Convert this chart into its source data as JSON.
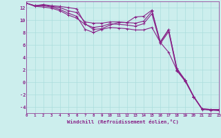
{
  "xlabel": "Windchill (Refroidissement éolien,°C)",
  "bg_color": "#cceeed",
  "line_color": "#882288",
  "grid_color": "#aadddd",
  "ylim": [
    -5,
    13
  ],
  "xlim": [
    0,
    23
  ],
  "yticks": [
    -4,
    -2,
    0,
    2,
    4,
    6,
    8,
    10,
    12
  ],
  "xticks": [
    0,
    1,
    2,
    3,
    4,
    5,
    6,
    7,
    8,
    9,
    10,
    11,
    12,
    13,
    14,
    15,
    16,
    17,
    18,
    19,
    20,
    21,
    22,
    23
  ],
  "series": [
    [
      12.7,
      12.3,
      12.5,
      12.3,
      12.2,
      12.0,
      11.8,
      9.4,
      8.5,
      8.6,
      9.2,
      9.6,
      9.6,
      10.5,
      10.6,
      11.6,
      6.4,
      8.4,
      2.2,
      0.3,
      -2.3,
      -4.3,
      -4.4,
      -4.4
    ],
    [
      12.7,
      12.3,
      12.4,
      12.2,
      12.0,
      11.5,
      11.2,
      9.7,
      9.5,
      9.5,
      9.7,
      9.7,
      9.6,
      9.5,
      9.8,
      11.4,
      6.5,
      8.5,
      2.0,
      0.2,
      -2.4,
      -4.3,
      -4.4,
      -4.5
    ],
    [
      12.7,
      12.3,
      12.3,
      12.1,
      11.7,
      11.1,
      10.6,
      8.5,
      8.0,
      8.5,
      8.8,
      8.7,
      8.6,
      8.4,
      8.4,
      8.8,
      6.4,
      4.8,
      1.9,
      0.3,
      -2.3,
      -4.3,
      -4.5,
      -4.5
    ],
    [
      12.7,
      12.2,
      12.1,
      11.9,
      11.5,
      10.8,
      10.3,
      9.3,
      8.8,
      9.0,
      9.4,
      9.3,
      9.2,
      9.0,
      9.4,
      11.0,
      6.2,
      8.1,
      1.8,
      0.1,
      -2.4,
      -4.4,
      -4.5,
      -4.6
    ]
  ]
}
